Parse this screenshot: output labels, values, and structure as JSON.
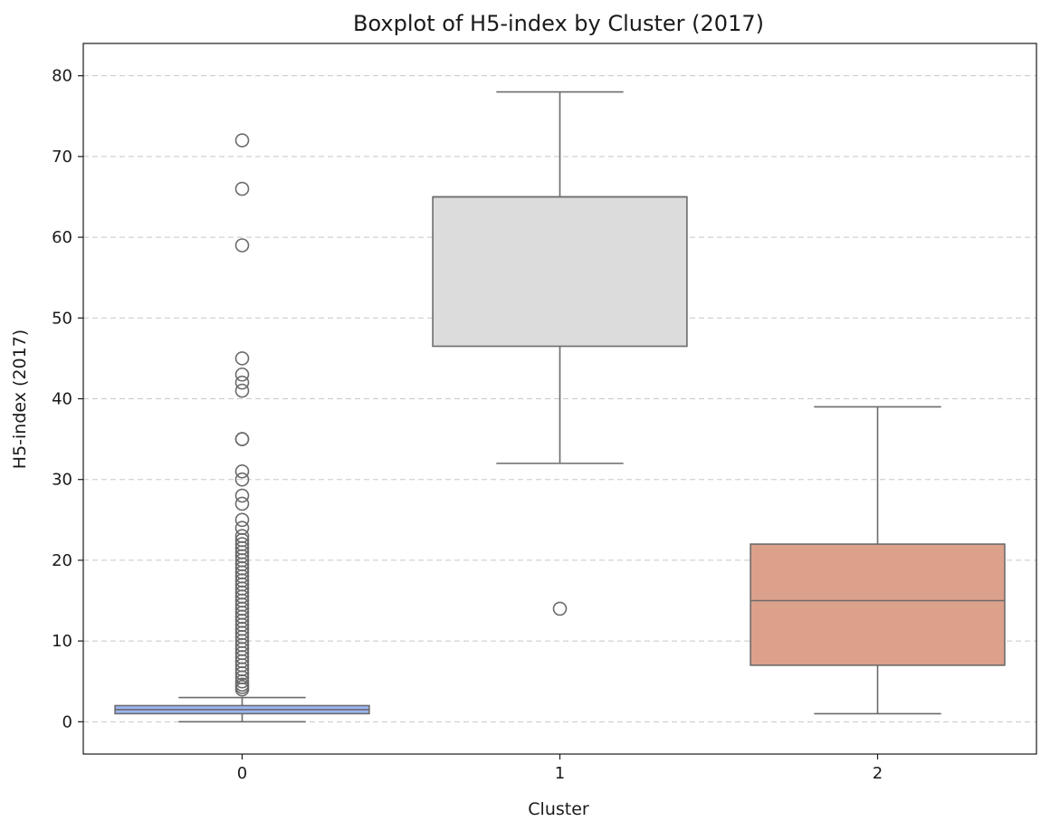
{
  "chart_data": {
    "type": "box",
    "title": "Boxplot of H5-index by Cluster (2017)",
    "xlabel": "Cluster",
    "ylabel": "H5-index (2017)",
    "ylim": [
      -4,
      84
    ],
    "yticks": [
      0,
      10,
      20,
      30,
      40,
      50,
      60,
      70,
      80
    ],
    "categories": [
      "0",
      "1",
      "2"
    ],
    "grid": {
      "y": true,
      "style": "dashed"
    },
    "boxes": [
      {
        "category": "0",
        "whisker_low": 0,
        "q1": 1,
        "median": 1.5,
        "q3": 2,
        "whisker_high": 3,
        "color": "#9db5f3",
        "outliers": [
          4,
          4.3,
          4.6,
          5,
          5.5,
          6,
          6.5,
          7,
          7.5,
          8,
          8.5,
          9,
          9.5,
          10,
          10.5,
          11,
          11.5,
          12,
          12.5,
          13,
          13.5,
          14,
          14.5,
          15,
          15.5,
          16,
          16.5,
          17,
          17.5,
          18,
          18.5,
          19,
          19.5,
          20,
          20.5,
          21,
          21.5,
          22,
          22.5,
          23,
          24,
          25,
          27,
          28,
          30,
          31,
          35,
          35,
          41,
          42,
          43,
          45,
          59,
          66,
          72
        ]
      },
      {
        "category": "1",
        "whisker_low": 32,
        "q1": 46.5,
        "median": 65,
        "q3": 65,
        "whisker_high": 78,
        "color": "#dcdcdc",
        "outliers": [
          14
        ]
      },
      {
        "category": "2",
        "whisker_low": 1,
        "q1": 7,
        "median": 15,
        "q3": 22,
        "whisker_high": 39,
        "color": "#dca18b",
        "outliers": []
      }
    ]
  }
}
